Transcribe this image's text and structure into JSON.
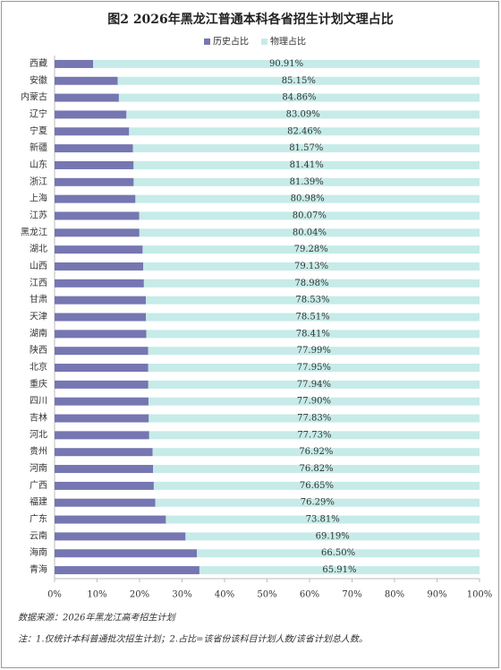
{
  "chart_data": {
    "type": "stacked-barh",
    "title": "图2  2026年黑龙江普通本科各省招生计划文理占比",
    "categories": [
      "西藏",
      "安徽",
      "内蒙古",
      "辽宁",
      "宁夏",
      "新疆",
      "山东",
      "浙江",
      "上海",
      "江苏",
      "黑龙江",
      "湖北",
      "山西",
      "江西",
      "甘肃",
      "天津",
      "湖南",
      "陕西",
      "北京",
      "重庆",
      "四川",
      "吉林",
      "河北",
      "贵州",
      "河南",
      "广西",
      "福建",
      "广东",
      "云南",
      "海南",
      "青海"
    ],
    "series": [
      {
        "name": "历史占比",
        "color": "#7676b2",
        "values": [
          9.09,
          14.85,
          15.14,
          16.91,
          17.54,
          18.43,
          18.59,
          18.61,
          19.02,
          19.93,
          19.96,
          20.72,
          20.87,
          21.02,
          21.47,
          21.49,
          21.59,
          22.01,
          22.05,
          22.06,
          22.1,
          22.17,
          22.27,
          23.08,
          23.18,
          23.35,
          23.71,
          26.19,
          30.81,
          33.5,
          34.09
        ]
      },
      {
        "name": "物理占比",
        "color": "#c6ebe8",
        "values": [
          90.91,
          85.15,
          84.86,
          83.09,
          82.46,
          81.57,
          81.41,
          81.39,
          80.98,
          80.07,
          80.04,
          79.28,
          79.13,
          78.98,
          78.53,
          78.51,
          78.41,
          77.99,
          77.95,
          77.94,
          77.9,
          77.83,
          77.73,
          76.92,
          76.82,
          76.65,
          76.29,
          73.81,
          69.19,
          66.5,
          65.91
        ],
        "value_labels": [
          "90.91%",
          "85.15%",
          "84.86%",
          "83.09%",
          "82.46%",
          "81.57%",
          "81.41%",
          "81.39%",
          "80.98%",
          "80.07%",
          "80.04%",
          "79.28%",
          "79.13%",
          "78.98%",
          "78.53%",
          "78.51%",
          "78.41%",
          "77.99%",
          "77.95%",
          "77.94%",
          "77.90%",
          "77.83%",
          "77.73%",
          "76.92%",
          "76.82%",
          "76.65%",
          "76.29%",
          "73.81%",
          "69.19%",
          "66.50%",
          "65.91%"
        ]
      }
    ],
    "xlim": [
      0,
      100
    ],
    "xticks": [
      {
        "value": 0,
        "label": "0%"
      },
      {
        "value": 10,
        "label": "10%"
      },
      {
        "value": 20,
        "label": "20%"
      },
      {
        "value": 30,
        "label": "30%"
      },
      {
        "value": 40,
        "label": "40%"
      },
      {
        "value": 50,
        "label": "50%"
      },
      {
        "value": 60,
        "label": "60%"
      },
      {
        "value": 70,
        "label": "70%"
      },
      {
        "value": 80,
        "label": "80%"
      },
      {
        "value": 90,
        "label": "90%"
      },
      {
        "value": 100,
        "label": "100%"
      }
    ],
    "source": "数据来源：2026年黑龙江高考招生计划",
    "note": "注：1.仅统计本科普通批次招生计划；2.占比=该省份该科目计划人数/该省计划总人数。"
  }
}
